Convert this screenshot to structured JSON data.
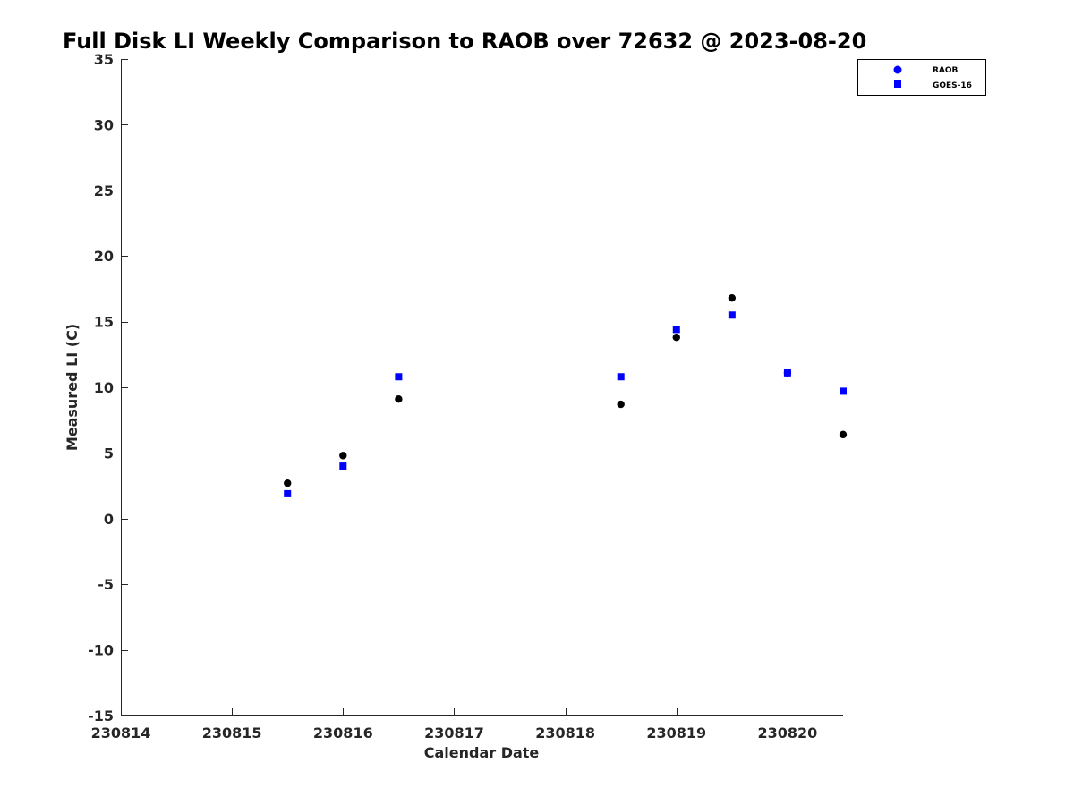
{
  "chart_data": {
    "type": "scatter",
    "title": "Full Disk LI Weekly Comparison to RAOB over 72632 @ 2023-08-20",
    "xlabel": "Calendar Date",
    "ylabel": "Measured LI (C)",
    "xlim": [
      230814,
      230820.5
    ],
    "ylim": [
      -15,
      35
    ],
    "xticks": [
      230814,
      230815,
      230816,
      230817,
      230818,
      230819,
      230820
    ],
    "xtick_labels": [
      "230814",
      "230815",
      "230816",
      "230817",
      "230818",
      "230819",
      "230820"
    ],
    "yticks": [
      35,
      30,
      25,
      20,
      15,
      10,
      5,
      0,
      -5,
      -10,
      -15
    ],
    "ytick_labels": [
      "35",
      "30",
      "25",
      "20",
      "15",
      "10",
      "5",
      "0",
      "-5",
      "-10",
      "-15"
    ],
    "grid": false,
    "legend_position": "top-right",
    "series": [
      {
        "name": "RAOB",
        "marker": "circle",
        "color": "#000000",
        "legend_color": "#0000ff",
        "x": [
          230815.5,
          230816,
          230816.5,
          230818.5,
          230819,
          230819.5,
          230820,
          230820.5
        ],
        "y": [
          2.7,
          4.8,
          9.1,
          8.7,
          13.8,
          16.8,
          11.1,
          6.4
        ]
      },
      {
        "name": "GOES-16",
        "marker": "square",
        "color": "#0000ff",
        "legend_color": "#0000ff",
        "x": [
          230815.5,
          230816,
          230816.5,
          230818.5,
          230819,
          230819.5,
          230820,
          230820.5
        ],
        "y": [
          1.9,
          4.0,
          10.8,
          10.8,
          14.4,
          15.5,
          11.1,
          9.7
        ]
      }
    ]
  }
}
